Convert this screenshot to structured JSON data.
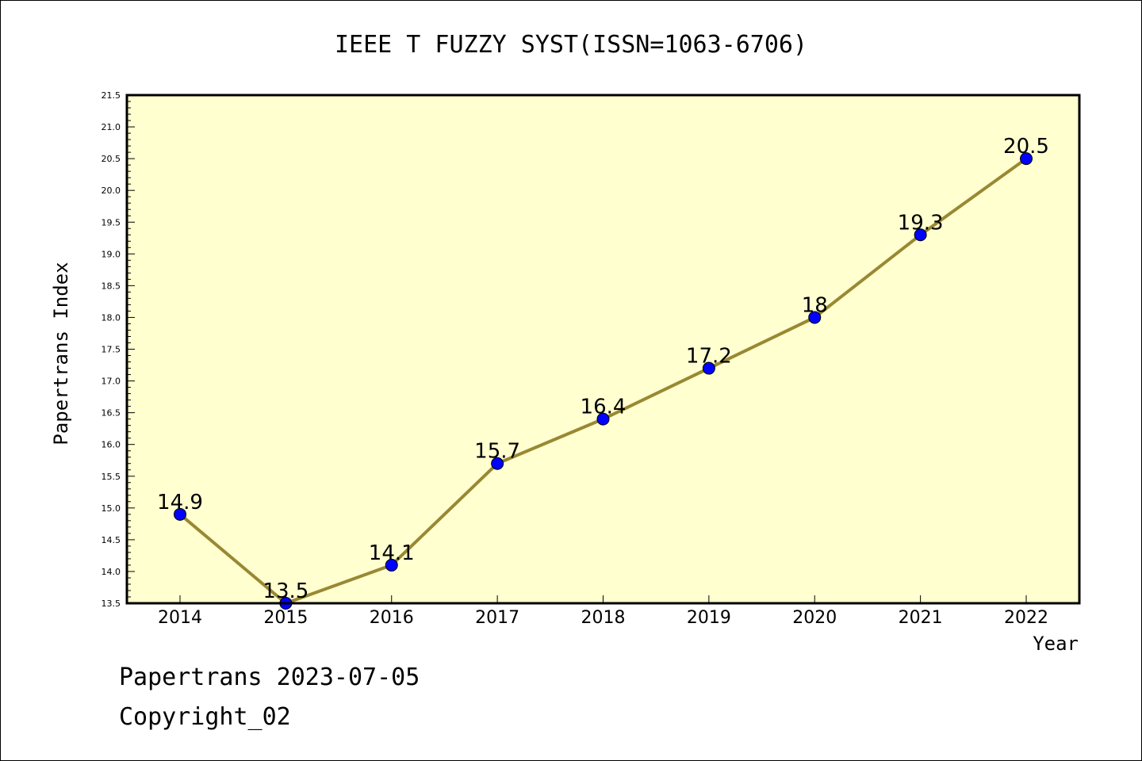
{
  "chart_data": {
    "type": "line",
    "title": "IEEE T FUZZY SYST(ISSN=1063-6706)",
    "xlabel": "Year",
    "ylabel": "Papertrans Index",
    "categories": [
      "2014",
      "2015",
      "2016",
      "2017",
      "2018",
      "2019",
      "2020",
      "2021",
      "2022"
    ],
    "values": [
      14.9,
      13.5,
      14.1,
      15.7,
      16.4,
      17.2,
      18,
      19.3,
      20.5
    ],
    "data_labels": [
      "14.9",
      "13.5",
      "14.1",
      "15.7",
      "16.4",
      "17.2",
      "18",
      "19.3",
      "20.5"
    ],
    "ylim": [
      13.5,
      21.5
    ],
    "yticks": [
      "13.5",
      "14.0",
      "14.5",
      "15.0",
      "15.5",
      "16.0",
      "16.5",
      "17.0",
      "17.5",
      "18.0",
      "18.5",
      "19.0",
      "19.5",
      "20.0",
      "20.5",
      "21.0",
      "21.5"
    ],
    "grid": false,
    "colors": {
      "plot_background": "#ffffd0",
      "line": "#998833",
      "marker_fill": "#0000ff",
      "marker_stroke": "#000000"
    }
  },
  "footer": {
    "line1": "Papertrans 2023-07-05",
    "line2": "Copyright_02"
  }
}
